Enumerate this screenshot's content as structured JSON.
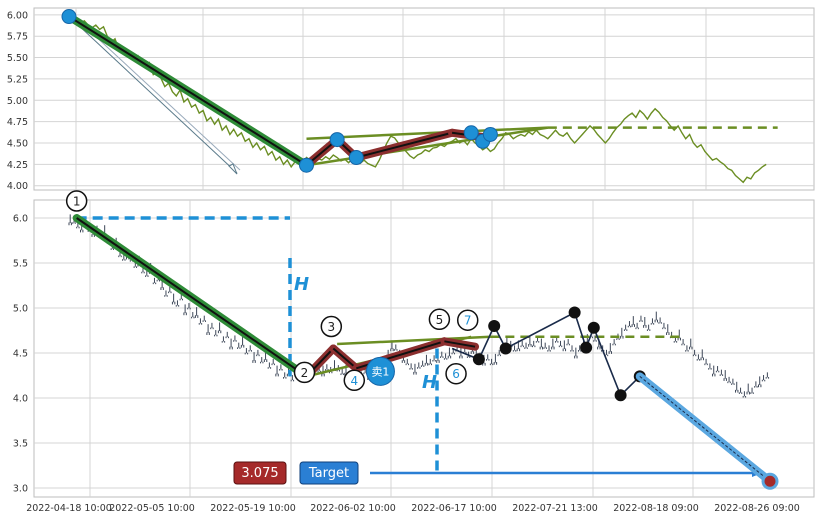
{
  "chart_data": {
    "type": "line",
    "x_ticks": [
      "2022-04-18 10:00",
      "2022-05-05 10:00",
      "2022-05-19 10:00",
      "2022-06-02 10:00",
      "2022-06-17 10:00",
      "2022-07-21 13:00",
      "2022-08-18 09:00",
      "2022-08-26 09:00"
    ],
    "top_panel": {
      "y_ticks": [
        6.0,
        5.75,
        5.5,
        5.25,
        5.0,
        4.75,
        4.5,
        4.25,
        4.0
      ],
      "ylim": [
        3.95,
        6.08
      ],
      "price_series": [
        [
          0,
          5.98
        ],
        [
          1,
          5.97
        ],
        [
          2,
          5.92
        ],
        [
          3,
          5.9
        ],
        [
          4,
          5.93
        ],
        [
          5,
          5.88
        ],
        [
          6,
          5.85
        ],
        [
          7,
          5.88
        ],
        [
          8,
          5.83
        ],
        [
          9,
          5.86
        ],
        [
          10,
          5.75
        ],
        [
          11,
          5.68
        ],
        [
          12,
          5.72
        ],
        [
          13,
          5.6
        ],
        [
          14,
          5.56
        ],
        [
          15,
          5.6
        ],
        [
          16,
          5.55
        ],
        [
          17,
          5.48
        ],
        [
          18,
          5.52
        ],
        [
          19,
          5.42
        ],
        [
          20,
          5.38
        ],
        [
          21,
          5.44
        ],
        [
          22,
          5.3
        ],
        [
          23,
          5.33
        ],
        [
          24,
          5.26
        ],
        [
          25,
          5.16
        ],
        [
          26,
          5.2
        ],
        [
          27,
          5.1
        ],
        [
          28,
          5.05
        ],
        [
          29,
          5.12
        ],
        [
          30,
          4.98
        ],
        [
          31,
          5.02
        ],
        [
          32,
          4.92
        ],
        [
          33,
          4.95
        ],
        [
          34,
          4.85
        ],
        [
          35,
          4.88
        ],
        [
          36,
          4.76
        ],
        [
          37,
          4.8
        ],
        [
          38,
          4.72
        ],
        [
          39,
          4.78
        ],
        [
          40,
          4.65
        ],
        [
          41,
          4.7
        ],
        [
          42,
          4.6
        ],
        [
          43,
          4.66
        ],
        [
          44,
          4.58
        ],
        [
          45,
          4.62
        ],
        [
          46,
          4.52
        ],
        [
          47,
          4.55
        ],
        [
          48,
          4.45
        ],
        [
          49,
          4.5
        ],
        [
          50,
          4.42
        ],
        [
          51,
          4.46
        ],
        [
          52,
          4.36
        ],
        [
          53,
          4.4
        ],
        [
          54,
          4.3
        ],
        [
          55,
          4.34
        ],
        [
          56,
          4.25
        ],
        [
          57,
          4.3
        ],
        [
          58,
          4.22
        ],
        [
          59,
          4.28
        ],
        [
          60,
          4.3
        ],
        [
          61,
          4.27
        ],
        [
          62,
          4.33
        ],
        [
          63,
          4.3
        ],
        [
          64,
          4.35
        ],
        [
          65,
          4.32
        ],
        [
          66,
          4.3
        ],
        [
          67,
          4.34
        ],
        [
          68,
          4.31
        ],
        [
          69,
          4.36
        ],
        [
          70,
          4.33
        ],
        [
          71,
          4.29
        ],
        [
          72,
          4.31
        ],
        [
          73,
          4.27
        ],
        [
          74,
          4.32
        ],
        [
          75,
          4.29
        ],
        [
          76,
          4.26
        ],
        [
          77,
          4.3
        ],
        [
          78,
          4.26
        ],
        [
          79,
          4.24
        ],
        [
          80,
          4.22
        ],
        [
          81,
          4.3
        ],
        [
          82,
          4.4
        ],
        [
          83,
          4.5
        ],
        [
          84,
          4.58
        ],
        [
          85,
          4.56
        ],
        [
          86,
          4.5
        ],
        [
          87,
          4.45
        ],
        [
          88,
          4.4
        ],
        [
          89,
          4.35
        ],
        [
          90,
          4.32
        ],
        [
          91,
          4.36
        ],
        [
          92,
          4.38
        ],
        [
          93,
          4.42
        ],
        [
          94,
          4.4
        ],
        [
          95,
          4.44
        ],
        [
          96,
          4.45
        ],
        [
          97,
          4.48
        ],
        [
          98,
          4.46
        ],
        [
          99,
          4.5
        ],
        [
          100,
          4.52
        ],
        [
          101,
          4.55
        ],
        [
          102,
          4.5
        ],
        [
          103,
          4.53
        ],
        [
          104,
          4.48
        ],
        [
          105,
          4.55
        ],
        [
          106,
          4.5
        ],
        [
          107,
          4.47
        ],
        [
          108,
          4.42
        ],
        [
          109,
          4.45
        ],
        [
          110,
          4.4
        ],
        [
          111,
          4.43
        ],
        [
          112,
          4.5
        ],
        [
          113,
          4.55
        ],
        [
          114,
          4.62
        ],
        [
          115,
          4.6
        ],
        [
          116,
          4.55
        ],
        [
          117,
          4.58
        ],
        [
          118,
          4.6
        ],
        [
          119,
          4.58
        ],
        [
          120,
          4.63
        ],
        [
          121,
          4.6
        ],
        [
          122,
          4.65
        ],
        [
          123,
          4.6
        ],
        [
          124,
          4.58
        ],
        [
          125,
          4.55
        ],
        [
          126,
          4.6
        ],
        [
          127,
          4.65
        ],
        [
          128,
          4.6
        ],
        [
          129,
          4.58
        ],
        [
          130,
          4.62
        ],
        [
          131,
          4.55
        ],
        [
          132,
          4.5
        ],
        [
          133,
          4.55
        ],
        [
          134,
          4.6
        ],
        [
          135,
          4.65
        ],
        [
          136,
          4.7
        ],
        [
          137,
          4.66
        ],
        [
          138,
          4.6
        ],
        [
          139,
          4.55
        ],
        [
          140,
          4.5
        ],
        [
          141,
          4.55
        ],
        [
          142,
          4.62
        ],
        [
          143,
          4.68
        ],
        [
          144,
          4.72
        ],
        [
          145,
          4.78
        ],
        [
          146,
          4.82
        ],
        [
          147,
          4.85
        ],
        [
          148,
          4.8
        ],
        [
          149,
          4.88
        ],
        [
          150,
          4.84
        ],
        [
          151,
          4.78
        ],
        [
          152,
          4.85
        ],
        [
          153,
          4.9
        ],
        [
          154,
          4.86
        ],
        [
          155,
          4.8
        ],
        [
          156,
          4.76
        ],
        [
          157,
          4.7
        ],
        [
          158,
          4.65
        ],
        [
          159,
          4.7
        ],
        [
          160,
          4.62
        ],
        [
          161,
          4.55
        ],
        [
          162,
          4.6
        ],
        [
          163,
          4.5
        ],
        [
          164,
          4.45
        ],
        [
          165,
          4.48
        ],
        [
          166,
          4.4
        ],
        [
          167,
          4.35
        ],
        [
          168,
          4.3
        ],
        [
          169,
          4.32
        ],
        [
          170,
          4.28
        ],
        [
          171,
          4.25
        ],
        [
          172,
          4.2
        ],
        [
          173,
          4.18
        ],
        [
          174,
          4.12
        ],
        [
          175,
          4.08
        ],
        [
          176,
          4.04
        ],
        [
          177,
          4.1
        ],
        [
          178,
          4.08
        ],
        [
          179,
          4.15
        ],
        [
          180,
          4.18
        ],
        [
          181,
          4.22
        ],
        [
          182,
          4.25
        ]
      ],
      "pattern_lines": [
        {
          "name": "wave-1-2",
          "points": [
            [
              0,
              5.98
            ],
            [
              62,
              4.24
            ]
          ]
        },
        {
          "name": "wave-2-3",
          "points": [
            [
              62,
              4.24
            ],
            [
              70,
              4.54
            ]
          ]
        },
        {
          "name": "wave-3-4",
          "points": [
            [
              70,
              4.54
            ],
            [
              75,
              4.33
            ]
          ]
        },
        {
          "name": "wave-4-5",
          "points": [
            [
              75,
              4.33
            ],
            [
              100,
              4.62
            ]
          ]
        },
        {
          "name": "wave-5-7",
          "points": [
            [
              100,
              4.62
            ],
            [
              108,
              4.57
            ]
          ]
        }
      ],
      "triangle": {
        "upper": [
          [
            62,
            4.55
          ],
          [
            125,
            4.68
          ]
        ],
        "lower": [
          [
            62,
            4.24
          ],
          [
            125,
            4.68
          ]
        ],
        "dashed_level": 4.68,
        "dashed_x": [
          125,
          185
        ]
      }
    },
    "bottom_panel": {
      "y_ticks": [
        6.0,
        5.5,
        5.0,
        4.5,
        4.0,
        3.5,
        3.0
      ],
      "ylim": [
        2.9,
        6.2
      ],
      "candles": [],
      "points": [
        {
          "label": "1",
          "x": 2,
          "y": 6.0
        },
        {
          "label": "2",
          "x": 62,
          "y": 4.24
        },
        {
          "label": "3",
          "x": 69,
          "y": 4.55
        },
        {
          "label": "4",
          "x": 75,
          "y": 4.33
        },
        {
          "label": "5",
          "x": 98,
          "y": 4.63
        },
        {
          "label": "6",
          "x": 100,
          "y": 4.47
        },
        {
          "label": "7",
          "x": 102,
          "y": 4.62
        }
      ],
      "sell_marker": {
        "label": "卖1",
        "x": 80,
        "y": 4.24
      },
      "measure_level": 6.0,
      "h_label": "H",
      "target": {
        "value_label": "3.075",
        "label": "Target",
        "y": 3.075
      },
      "black_points": [
        [
          107,
          4.43
        ],
        [
          111,
          4.8
        ],
        [
          114,
          4.55
        ],
        [
          132,
          4.95
        ],
        [
          135,
          4.56
        ],
        [
          137,
          4.78
        ],
        [
          144,
          4.03
        ],
        [
          149,
          4.24
        ]
      ],
      "projection": {
        "from": [
          149,
          4.24
        ],
        "to": [
          183,
          3.075
        ]
      }
    },
    "colors": {
      "price": "#6b8e23",
      "wave": "#2e8b37",
      "wave_core": "#111111",
      "red_wave": "#8b2e2e",
      "triangle": "#6b8e23",
      "blue": "#1e90d6",
      "target_bg": "#2a7fd4",
      "value_bg": "#a52a2a",
      "candle": "#3c4657"
    }
  },
  "labels": {
    "target_value": "3.075",
    "target": "Target",
    "sell": "卖1",
    "h": "H",
    "h2": "H"
  }
}
